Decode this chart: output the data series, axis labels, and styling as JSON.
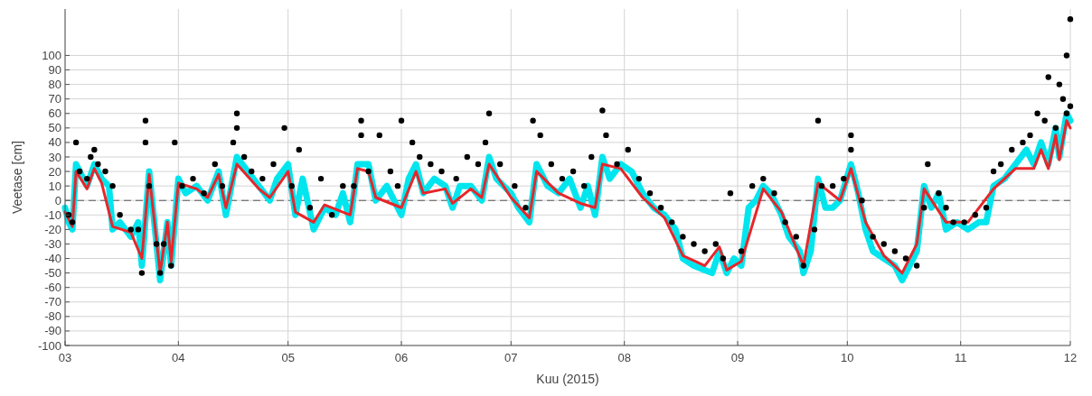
{
  "chart_data": {
    "type": "line",
    "xlabel": "Kuu (2015)",
    "ylabel": "Veetase [cm]",
    "xlim": [
      "2015-03-01",
      "2015-12-01"
    ],
    "xticks": [
      {
        "value": "2015-03-01",
        "label": "03"
      },
      {
        "value": "2015-04-01",
        "label": "04"
      },
      {
        "value": "2015-05-01",
        "label": "05"
      },
      {
        "value": "2015-06-01",
        "label": "06"
      },
      {
        "value": "2015-07-01",
        "label": "07"
      },
      {
        "value": "2015-08-01",
        "label": "08"
      },
      {
        "value": "2015-09-01",
        "label": "09"
      },
      {
        "value": "2015-10-01",
        "label": "10"
      },
      {
        "value": "2015-11-01",
        "label": "11"
      },
      {
        "value": "2015-12-01",
        "label": "12"
      }
    ],
    "ylim": [
      -100,
      132
    ],
    "yticks": [
      -100,
      -90,
      -80,
      -70,
      -60,
      -50,
      -40,
      -30,
      -20,
      -10,
      0,
      10,
      20,
      30,
      40,
      50,
      60,
      70,
      80,
      90,
      100
    ],
    "grid": true,
    "ref_lines": [
      {
        "axis": "y",
        "value": 0,
        "color": "#555555",
        "line_style": "dashed"
      }
    ],
    "series": [
      {
        "type": "line",
        "color": "#00e5ee",
        "line_style": "solid",
        "x": [
          "2015-03-01",
          "2015-03-02",
          "2015-03-03",
          "2015-03-04",
          "2015-03-07",
          "2015-03-09",
          "2015-03-11",
          "2015-03-13",
          "2015-03-14",
          "2015-03-16",
          "2015-03-19",
          "2015-03-21",
          "2015-03-22",
          "2015-03-24",
          "2015-03-27",
          "2015-03-29",
          "2015-03-30",
          "2015-04-01",
          "2015-04-03",
          "2015-04-06",
          "2015-04-09",
          "2015-04-12",
          "2015-04-14",
          "2015-04-17",
          "2015-04-20",
          "2015-04-23",
          "2015-04-26",
          "2015-04-28",
          "2015-05-01",
          "2015-05-03",
          "2015-05-05",
          "2015-05-08",
          "2015-05-11",
          "2015-05-14",
          "2015-05-16",
          "2015-05-18",
          "2015-05-20",
          "2015-05-23",
          "2015-05-25",
          "2015-05-28",
          "2015-06-01",
          "2015-06-03",
          "2015-06-05",
          "2015-06-07",
          "2015-06-10",
          "2015-06-13",
          "2015-06-15",
          "2015-06-17",
          "2015-06-20",
          "2015-06-23",
          "2015-06-25",
          "2015-06-27",
          "2015-07-01",
          "2015-07-03",
          "2015-07-06",
          "2015-07-08",
          "2015-07-11",
          "2015-07-14",
          "2015-07-17",
          "2015-07-20",
          "2015-07-22",
          "2015-07-24",
          "2015-07-26",
          "2015-07-28",
          "2015-07-31",
          "2015-08-03",
          "2015-08-06",
          "2015-08-09",
          "2015-08-12",
          "2015-08-15",
          "2015-08-17",
          "2015-08-20",
          "2015-08-23",
          "2015-08-25",
          "2015-08-27",
          "2015-08-29",
          "2015-08-31",
          "2015-09-02",
          "2015-09-04",
          "2015-09-06",
          "2015-09-08",
          "2015-09-10",
          "2015-09-13",
          "2015-09-15",
          "2015-09-18",
          "2015-09-19",
          "2015-09-21",
          "2015-09-23",
          "2015-09-25",
          "2015-09-27",
          "2015-09-29",
          "2015-10-02",
          "2015-10-04",
          "2015-10-06",
          "2015-10-08",
          "2015-10-11",
          "2015-10-14",
          "2015-10-16",
          "2015-10-18",
          "2015-10-20",
          "2015-10-22",
          "2015-10-24",
          "2015-10-26",
          "2015-10-28",
          "2015-10-31",
          "2015-11-03",
          "2015-11-06",
          "2015-11-08",
          "2015-11-10",
          "2015-11-13",
          "2015-11-16",
          "2015-11-19",
          "2015-11-21",
          "2015-11-23",
          "2015-11-25",
          "2015-11-27",
          "2015-11-28",
          "2015-11-30",
          "2015-12-01"
        ],
        "values": [
          -5,
          -15,
          -20,
          25,
          10,
          25,
          15,
          10,
          -20,
          -15,
          -25,
          -15,
          -45,
          20,
          -55,
          -15,
          -45,
          15,
          5,
          10,
          0,
          20,
          -10,
          30,
          20,
          10,
          0,
          15,
          25,
          -10,
          15,
          -20,
          -5,
          -10,
          5,
          -15,
          25,
          25,
          0,
          10,
          -10,
          15,
          25,
          5,
          15,
          10,
          -5,
          10,
          10,
          0,
          30,
          15,
          5,
          -5,
          -15,
          25,
          10,
          5,
          15,
          -5,
          10,
          -10,
          30,
          15,
          25,
          20,
          5,
          -5,
          -10,
          -20,
          -40,
          -45,
          -48,
          -50,
          -35,
          -50,
          -40,
          -45,
          -5,
          0,
          10,
          5,
          -10,
          -25,
          -35,
          -50,
          -35,
          15,
          -5,
          -5,
          0,
          25,
          5,
          -20,
          -35,
          -40,
          -45,
          -55,
          -45,
          -35,
          10,
          -5,
          5,
          -20,
          -15,
          -20,
          -15,
          -15,
          10,
          15,
          25,
          35,
          25,
          40,
          25,
          50,
          30,
          60,
          55
        ]
      },
      {
        "type": "line",
        "color": "#e8262a",
        "line_style": "solid",
        "x": [
          "2015-03-01",
          "2015-03-03",
          "2015-03-04",
          "2015-03-07",
          "2015-03-09",
          "2015-03-11",
          "2015-03-14",
          "2015-03-19",
          "2015-03-22",
          "2015-03-24",
          "2015-03-27",
          "2015-03-29",
          "2015-03-30",
          "2015-04-01",
          "2015-04-06",
          "2015-04-09",
          "2015-04-12",
          "2015-04-14",
          "2015-04-17",
          "2015-04-23",
          "2015-04-26",
          "2015-05-01",
          "2015-05-03",
          "2015-05-08",
          "2015-05-11",
          "2015-05-18",
          "2015-05-20",
          "2015-05-23",
          "2015-05-25",
          "2015-06-01",
          "2015-06-05",
          "2015-06-07",
          "2015-06-13",
          "2015-06-15",
          "2015-06-20",
          "2015-06-23",
          "2015-06-25",
          "2015-07-01",
          "2015-07-06",
          "2015-07-08",
          "2015-07-14",
          "2015-07-20",
          "2015-07-24",
          "2015-07-26",
          "2015-07-31",
          "2015-08-06",
          "2015-08-12",
          "2015-08-17",
          "2015-08-23",
          "2015-08-27",
          "2015-08-29",
          "2015-09-02",
          "2015-09-08",
          "2015-09-13",
          "2015-09-19",
          "2015-09-23",
          "2015-09-29",
          "2015-10-02",
          "2015-10-06",
          "2015-10-11",
          "2015-10-16",
          "2015-10-20",
          "2015-10-22",
          "2015-10-28",
          "2015-11-03",
          "2015-11-10",
          "2015-11-16",
          "2015-11-21",
          "2015-11-23",
          "2015-11-25",
          "2015-11-27",
          "2015-11-28",
          "2015-11-30",
          "2015-12-01"
        ],
        "values": [
          -8,
          -18,
          20,
          8,
          22,
          12,
          -18,
          -22,
          -40,
          18,
          -50,
          -15,
          -42,
          12,
          8,
          2,
          18,
          -5,
          25,
          8,
          2,
          20,
          -8,
          -15,
          -3,
          -10,
          22,
          20,
          2,
          -5,
          20,
          5,
          8,
          -2,
          8,
          2,
          25,
          2,
          -12,
          20,
          5,
          -2,
          -5,
          25,
          22,
          2,
          -12,
          -38,
          -45,
          -32,
          -48,
          -42,
          8,
          -8,
          -45,
          12,
          0,
          22,
          -15,
          -38,
          -50,
          -30,
          8,
          -15,
          -15,
          8,
          22,
          22,
          35,
          22,
          45,
          28,
          55,
          50
        ]
      },
      {
        "type": "scatter",
        "color": "#000000",
        "marker": "circle",
        "x": [
          "2015-03-02",
          "2015-03-03",
          "2015-03-04",
          "2015-03-05",
          "2015-03-07",
          "2015-03-08",
          "2015-03-09",
          "2015-03-10",
          "2015-03-12",
          "2015-03-14",
          "2015-03-16",
          "2015-03-19",
          "2015-03-21",
          "2015-03-22",
          "2015-03-23",
          "2015-03-23",
          "2015-03-24",
          "2015-03-26",
          "2015-03-27",
          "2015-03-28",
          "2015-03-30",
          "2015-03-31",
          "2015-04-02",
          "2015-04-05",
          "2015-04-08",
          "2015-04-11",
          "2015-04-13",
          "2015-04-16",
          "2015-04-17",
          "2015-04-17",
          "2015-04-19",
          "2015-04-21",
          "2015-04-24",
          "2015-04-27",
          "2015-04-30",
          "2015-05-02",
          "2015-05-04",
          "2015-05-07",
          "2015-05-10",
          "2015-05-13",
          "2015-05-16",
          "2015-05-19",
          "2015-05-21",
          "2015-05-21",
          "2015-05-23",
          "2015-05-26",
          "2015-05-29",
          "2015-05-31",
          "2015-06-01",
          "2015-06-04",
          "2015-06-06",
          "2015-06-09",
          "2015-06-12",
          "2015-06-16",
          "2015-06-19",
          "2015-06-22",
          "2015-06-24",
          "2015-06-25",
          "2015-06-28",
          "2015-07-02",
          "2015-07-05",
          "2015-07-07",
          "2015-07-09",
          "2015-07-12",
          "2015-07-15",
          "2015-07-18",
          "2015-07-21",
          "2015-07-23",
          "2015-07-26",
          "2015-07-27",
          "2015-07-30",
          "2015-08-02",
          "2015-08-05",
          "2015-08-08",
          "2015-08-11",
          "2015-08-14",
          "2015-08-17",
          "2015-08-20",
          "2015-08-23",
          "2015-08-26",
          "2015-08-28",
          "2015-08-30",
          "2015-09-02",
          "2015-09-05",
          "2015-09-08",
          "2015-09-11",
          "2015-09-14",
          "2015-09-17",
          "2015-09-19",
          "2015-09-22",
          "2015-09-23",
          "2015-09-24",
          "2015-09-27",
          "2015-09-30",
          "2015-10-02",
          "2015-10-02",
          "2015-10-05",
          "2015-10-08",
          "2015-10-11",
          "2015-10-14",
          "2015-10-17",
          "2015-10-20",
          "2015-10-22",
          "2015-10-23",
          "2015-10-26",
          "2015-10-28",
          "2015-10-30",
          "2015-11-02",
          "2015-11-05",
          "2015-11-08",
          "2015-11-10",
          "2015-11-12",
          "2015-11-15",
          "2015-11-18",
          "2015-11-20",
          "2015-11-22",
          "2015-11-24",
          "2015-11-25",
          "2015-11-27",
          "2015-11-28",
          "2015-11-29",
          "2015-11-30",
          "2015-11-30",
          "2015-12-01",
          "2015-12-01"
        ],
        "values": [
          -10,
          -15,
          40,
          20,
          15,
          30,
          35,
          25,
          20,
          10,
          -10,
          -20,
          -20,
          -50,
          55,
          40,
          10,
          -30,
          -50,
          -30,
          -45,
          40,
          10,
          15,
          5,
          25,
          10,
          40,
          60,
          50,
          30,
          20,
          15,
          25,
          50,
          10,
          35,
          -5,
          15,
          -10,
          10,
          10,
          55,
          45,
          20,
          45,
          20,
          10,
          55,
          40,
          30,
          25,
          20,
          15,
          30,
          25,
          40,
          60,
          25,
          10,
          -5,
          55,
          45,
          25,
          15,
          20,
          10,
          30,
          62,
          45,
          25,
          35,
          15,
          5,
          -5,
          -15,
          -25,
          -30,
          -35,
          -30,
          -40,
          5,
          -35,
          10,
          15,
          5,
          -15,
          -25,
          -45,
          -20,
          55,
          10,
          10,
          15,
          45,
          35,
          0,
          -25,
          -30,
          -35,
          -40,
          -45,
          -5,
          25,
          5,
          -5,
          -15,
          -15,
          -10,
          -5,
          20,
          25,
          35,
          40,
          45,
          60,
          55,
          85,
          50,
          80,
          70,
          100,
          60,
          125,
          65
        ]
      }
    ]
  }
}
